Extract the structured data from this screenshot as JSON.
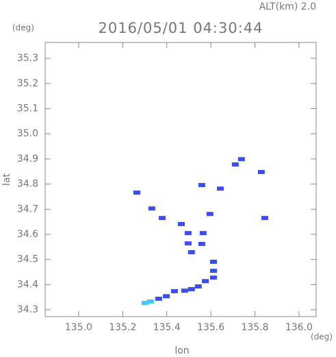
{
  "chart_data": {
    "type": "scatter",
    "title": "2016/05/01 04:30:44",
    "subtitle": "ALT(km) 2.0",
    "x_label": "lon",
    "y_label": "lat",
    "x_unit": "(deg)",
    "y_unit": "(deg)",
    "xlim": [
      134.848,
      136.078
    ],
    "ylim": [
      34.273,
      35.363
    ],
    "xticks": [
      {
        "value": 135,
        "label": "135.0"
      },
      135.2,
      135.4,
      135.6,
      135.8,
      {
        "value": 136,
        "label": "136.0"
      }
    ],
    "yticks": [
      34.3,
      34.4,
      34.5,
      34.6,
      34.7,
      34.8,
      34.9,
      {
        "value": 35,
        "label": "35.0"
      },
      35.1,
      35.2,
      35.3
    ],
    "series": [
      {
        "color": "#3b4ef2",
        "x": [
          135.711,
          135.739,
          135.829,
          135.559,
          135.643,
          135.264,
          135.332,
          135.379,
          135.466,
          135.596,
          135.845,
          135.497,
          135.565,
          135.497,
          135.559,
          135.512,
          135.612,
          135.612,
          135.612,
          135.575,
          135.543,
          135.512,
          135.481,
          135.435,
          135.398,
          135.363
        ],
        "y": [
          34.878,
          34.899,
          34.848,
          34.796,
          34.782,
          34.766,
          34.703,
          34.665,
          34.641,
          34.681,
          34.665,
          34.605,
          34.605,
          34.564,
          34.562,
          34.529,
          34.491,
          34.455,
          34.428,
          34.414,
          34.393,
          34.382,
          34.376,
          34.374,
          34.354,
          34.344
        ]
      },
      {
        "color": "#44c8f0",
        "x": [
          135.326,
          135.301
        ],
        "y": [
          34.333,
          34.327
        ]
      }
    ]
  }
}
